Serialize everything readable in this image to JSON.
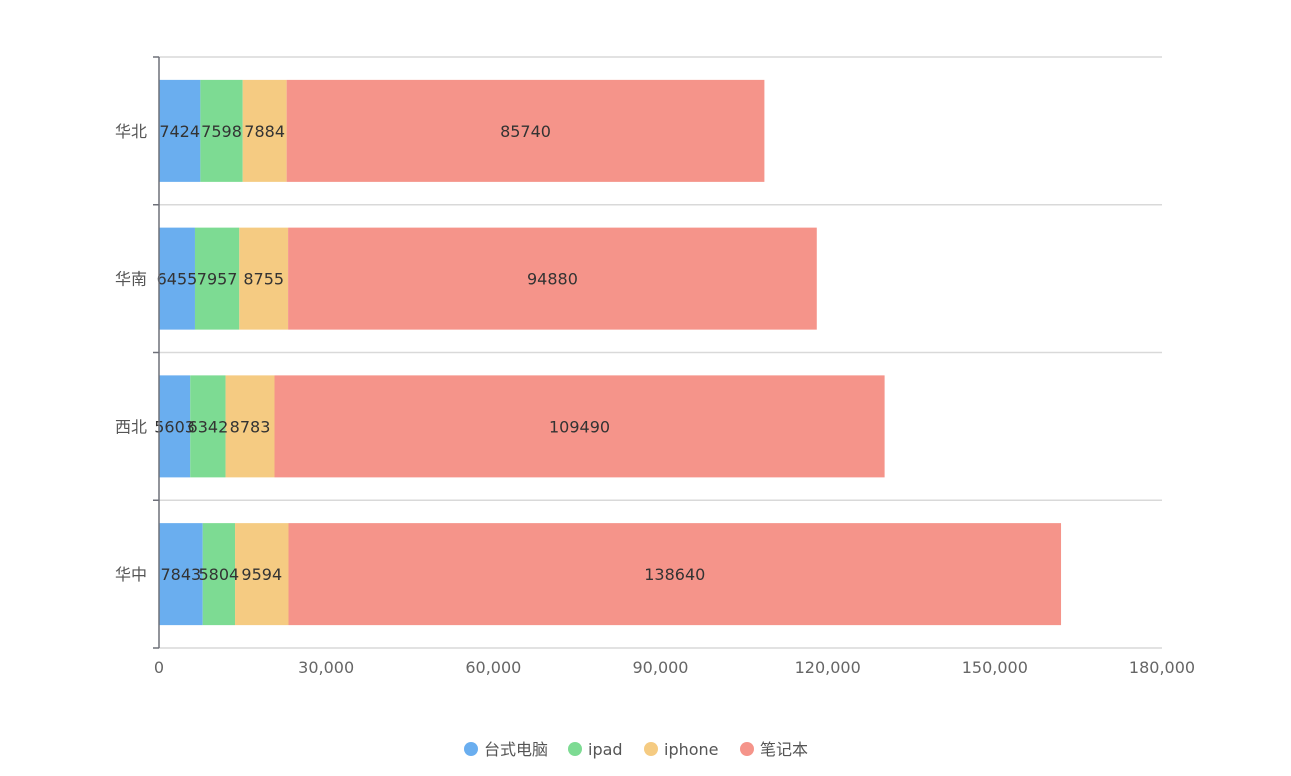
{
  "chart_data": {
    "type": "bar",
    "orientation": "horizontal",
    "stacked": true,
    "categories": [
      "华中",
      "西北",
      "华南",
      "华北"
    ],
    "series": [
      {
        "name": "台式电脑",
        "color": "#6aaeef",
        "values": [
          7843,
          5603,
          6455,
          7424
        ]
      },
      {
        "name": "ipad",
        "color": "#7ddb93",
        "values": [
          5804,
          6342,
          7957,
          7598
        ]
      },
      {
        "name": "iphone",
        "color": "#f5cb82",
        "values": [
          9594,
          8783,
          8755,
          7884
        ]
      },
      {
        "name": "笔记本",
        "color": "#f5948a",
        "values": [
          138640,
          109490,
          94880,
          85740
        ]
      }
    ],
    "xlim": [
      0,
      180000
    ],
    "xticks": [
      "0",
      "30,000",
      "60,000",
      "90,000",
      "120,000",
      "150,000",
      "180,000"
    ],
    "xtick_values": [
      0,
      30000,
      60000,
      90000,
      120000,
      150000,
      180000
    ],
    "grid": true,
    "legend_position": "bottom-center"
  }
}
